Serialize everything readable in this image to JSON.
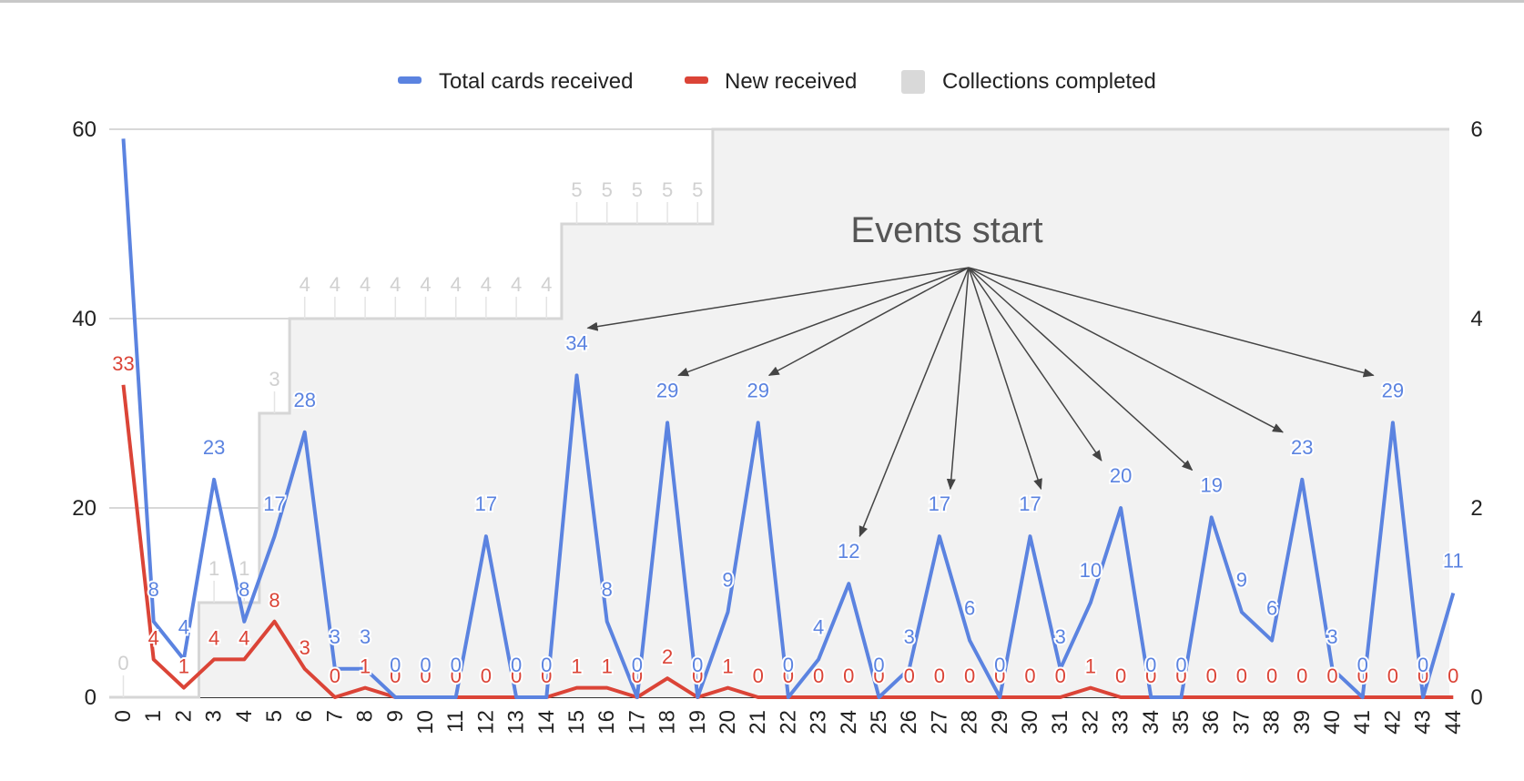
{
  "chart_data": {
    "type": "line",
    "x": [
      0,
      1,
      2,
      3,
      4,
      5,
      6,
      7,
      8,
      9,
      10,
      11,
      12,
      13,
      14,
      15,
      16,
      17,
      18,
      19,
      20,
      21,
      22,
      23,
      24,
      25,
      26,
      27,
      28,
      29,
      30,
      31,
      32,
      33,
      34,
      35,
      36,
      37,
      38,
      39,
      40,
      41,
      42,
      43,
      44
    ],
    "series": [
      {
        "name": "Total cards received",
        "color": "#5b83e0",
        "axis": "left",
        "style": "line",
        "values": [
          59,
          8,
          4,
          23,
          8,
          17,
          28,
          3,
          3,
          0,
          0,
          0,
          17,
          0,
          0,
          34,
          8,
          0,
          29,
          0,
          9,
          29,
          0,
          4,
          12,
          0,
          3,
          17,
          6,
          0,
          17,
          3,
          10,
          20,
          0,
          0,
          19,
          9,
          6,
          23,
          3,
          0,
          29,
          0,
          11
        ]
      },
      {
        "name": "New received",
        "color": "#db4437",
        "axis": "left",
        "style": "line",
        "values": [
          33,
          4,
          1,
          4,
          4,
          8,
          3,
          0,
          1,
          0,
          0,
          0,
          0,
          0,
          0,
          1,
          1,
          0,
          2,
          0,
          1,
          0,
          0,
          0,
          0,
          0,
          0,
          0,
          0,
          0,
          0,
          0,
          1,
          0,
          0,
          0,
          0,
          0,
          0,
          0,
          0,
          0,
          0,
          0,
          0
        ]
      },
      {
        "name": "Collections completed",
        "color": "#d9d9d9",
        "axis": "right",
        "style": "stepped-area",
        "values": [
          0,
          0,
          0,
          1,
          1,
          3,
          4,
          4,
          4,
          4,
          4,
          4,
          4,
          4,
          4,
          5,
          5,
          5,
          5,
          5,
          6,
          6,
          6,
          6,
          6,
          6,
          6,
          6,
          6,
          6,
          6,
          6,
          6,
          6,
          6,
          6,
          6,
          6,
          6,
          6,
          6,
          6,
          6,
          6,
          6
        ]
      }
    ],
    "total_label_indices": [
      1,
      2,
      3,
      4,
      5,
      6,
      7,
      8,
      9,
      10,
      11,
      12,
      13,
      14,
      15,
      16,
      17,
      18,
      19,
      20,
      21,
      22,
      23,
      24,
      25,
      26,
      27,
      28,
      29,
      30,
      31,
      32,
      33,
      34,
      35,
      36,
      37,
      38,
      39,
      40,
      41,
      42,
      43,
      44
    ],
    "new_label_indices": [
      0,
      1,
      2,
      3,
      4,
      5,
      6,
      7,
      8,
      9,
      10,
      11,
      12,
      13,
      14,
      15,
      16,
      17,
      18,
      19,
      20,
      21,
      22,
      23,
      24,
      25,
      26,
      27,
      28,
      29,
      30,
      31,
      32,
      33,
      34,
      35,
      36,
      37,
      38,
      39,
      40,
      41,
      42,
      43,
      44
    ],
    "collections_label_indices": [
      0,
      3,
      4,
      5,
      6,
      7,
      8,
      9,
      10,
      11,
      12,
      13,
      14,
      15,
      16,
      17,
      18,
      19
    ],
    "collections_label_values": [
      0,
      1,
      1,
      3,
      4,
      4,
      4,
      4,
      4,
      4,
      4,
      4,
      4,
      5,
      5,
      5,
      5,
      5
    ],
    "left_axis": {
      "ylim": [
        0,
        60
      ],
      "ticks": [
        "0",
        "20",
        "40",
        "60"
      ]
    },
    "right_axis": {
      "ylim": [
        0,
        6
      ],
      "ticks": [
        "0",
        "2",
        "4",
        "6"
      ]
    },
    "grid": true,
    "legend_position": "top",
    "annotation": {
      "text": "Events start",
      "arrow_targets_x": [
        15,
        18,
        21,
        24,
        27,
        30,
        32,
        35,
        38,
        41
      ]
    },
    "title": "",
    "xlabel": "",
    "ylabel": ""
  }
}
